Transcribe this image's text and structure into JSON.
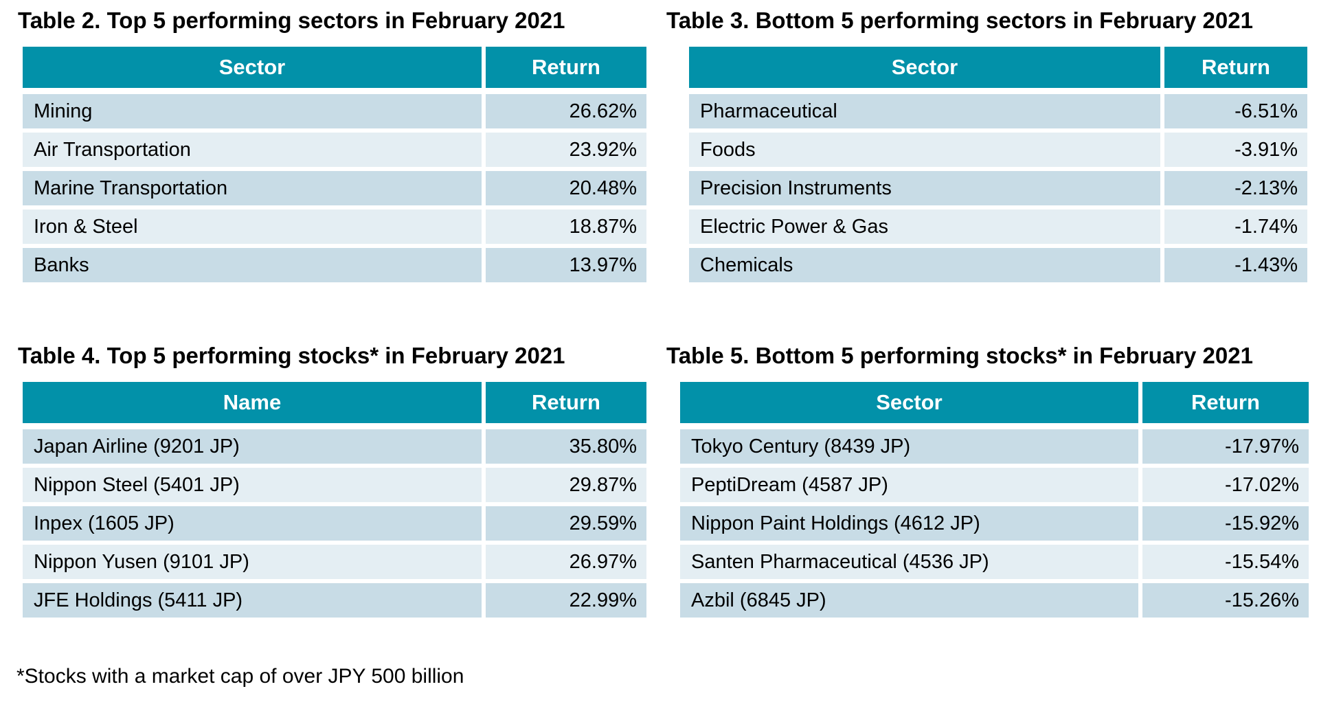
{
  "page": {
    "footnote": "*Stocks with a market cap of over JPY 500 billion"
  },
  "colors": {
    "page_bg": "#FFFFFF",
    "header_bg": "#0291A9",
    "header_text": "#FFFFFF",
    "row_odd_bg": "#C8DCE6",
    "row_even_bg": "#E4EEF3",
    "title": "#000000",
    "text": "#000000"
  },
  "tables": [
    {
      "title": "Table 2. Top 5 performing sectors in February 2021",
      "columns": [
        "Sector",
        "Return"
      ],
      "rows": [
        {
          "name": "Mining",
          "value": "26.62%"
        },
        {
          "name": "Air Transportation",
          "value": "23.92%"
        },
        {
          "name": "Marine Transportation",
          "value": "20.48%"
        },
        {
          "name": "Iron & Steel",
          "value": "18.87%"
        },
        {
          "name": "Banks",
          "value": "13.97%"
        }
      ]
    },
    {
      "title": "Table 3. Bottom 5 performing sectors in February 2021",
      "columns": [
        "Sector",
        "Return"
      ],
      "rows": [
        {
          "name": "Pharmaceutical",
          "value": "-6.51%"
        },
        {
          "name": "Foods",
          "value": "-3.91%"
        },
        {
          "name": "Precision Instruments",
          "value": "-2.13%"
        },
        {
          "name": "Electric Power & Gas",
          "value": "-1.74%"
        },
        {
          "name": "Chemicals",
          "value": "-1.43%"
        }
      ]
    },
    {
      "title": "Table 4. Top 5 performing stocks* in February 2021",
      "columns": [
        "Name",
        "Return"
      ],
      "rows": [
        {
          "name": "Japan Airline (9201 JP)",
          "value": "35.80%"
        },
        {
          "name": "Nippon Steel (5401 JP)",
          "value": "29.87%"
        },
        {
          "name": "Inpex (1605 JP)",
          "value": "29.59%"
        },
        {
          "name": "Nippon Yusen (9101 JP)",
          "value": "26.97%"
        },
        {
          "name": "JFE Holdings (5411 JP)",
          "value": "22.99%"
        }
      ]
    },
    {
      "title": "Table 5. Bottom 5 performing stocks* in February 2021",
      "columns": [
        "Sector",
        "Return"
      ],
      "rows": [
        {
          "name": "Tokyo Century (8439 JP)",
          "value": "-17.97%"
        },
        {
          "name": "PeptiDream (4587 JP)",
          "value": "-17.02%"
        },
        {
          "name": "Nippon Paint Holdings (4612 JP)",
          "value": "-15.92%"
        },
        {
          "name": "Santen Pharmaceutical (4536 JP)",
          "value": "-15.54%"
        },
        {
          "name": "Azbil (6845 JP)",
          "value": "-15.26%"
        }
      ]
    }
  ]
}
